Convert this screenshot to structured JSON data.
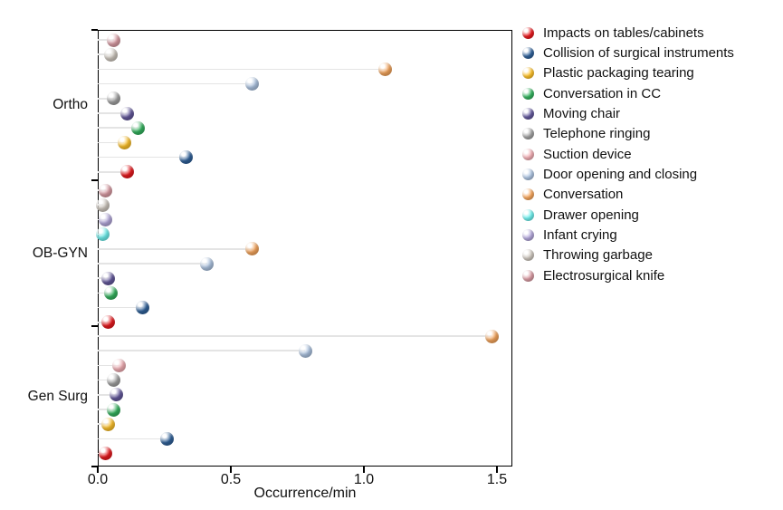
{
  "chart_data": {
    "type": "scatter",
    "variant": "grouped-lollipop-dot-plot",
    "title": "",
    "xlabel": "Occurrence/min",
    "ylabel": "",
    "xlim": [
      0,
      1.56
    ],
    "x_ticks": [
      "0.0",
      "0.5",
      "1.0",
      "1.5"
    ],
    "x_tick_values": [
      0,
      0.5,
      1.0,
      1.5
    ],
    "grid": false,
    "legend_position": "right-outside",
    "marker_style": "glossy-3d-sphere",
    "stem_color": "#e4e4e4",
    "categories": [
      {
        "name": "Impacts on tables/cabinets",
        "color": "#ea1a1f"
      },
      {
        "name": "Collision of surgical instruments",
        "color": "#31639c"
      },
      {
        "name": "Plastic packaging tearing",
        "color": "#ffc32b"
      },
      {
        "name": "Conversation in CC",
        "color": "#35b560"
      },
      {
        "name": "Moving chair",
        "color": "#655a9e"
      },
      {
        "name": "Telephone ringing",
        "color": "#a3a3a3"
      },
      {
        "name": "Suction device",
        "color": "#f4b0b6"
      },
      {
        "name": "Door opening and closing",
        "color": "#afc6e4"
      },
      {
        "name": "Conversation",
        "color": "#f9a85e"
      },
      {
        "name": "Drawer opening",
        "color": "#70f2f0"
      },
      {
        "name": "Infant crying",
        "color": "#b5a9dd"
      },
      {
        "name": "Throwing garbage",
        "color": "#d0c9c0"
      },
      {
        "name": "Electrosurgical knife",
        "color": "#dd9ea6"
      }
    ],
    "groups": [
      {
        "label": "Ortho",
        "points": [
          {
            "category": "Electrosurgical knife",
            "value": 0.06
          },
          {
            "category": "Throwing garbage",
            "value": 0.05
          },
          {
            "category": "Conversation",
            "value": 1.08
          },
          {
            "category": "Door opening and closing",
            "value": 0.58
          },
          {
            "category": "Telephone ringing",
            "value": 0.06
          },
          {
            "category": "Moving chair",
            "value": 0.11
          },
          {
            "category": "Conversation in CC",
            "value": 0.15
          },
          {
            "category": "Plastic packaging tearing",
            "value": 0.1
          },
          {
            "category": "Collision of surgical instruments",
            "value": 0.33
          },
          {
            "category": "Impacts on tables/cabinets",
            "value": 0.11
          }
        ]
      },
      {
        "label": "OB-GYN",
        "points": [
          {
            "category": "Electrosurgical knife",
            "value": 0.03
          },
          {
            "category": "Throwing garbage",
            "value": 0.02
          },
          {
            "category": "Infant crying",
            "value": 0.03
          },
          {
            "category": "Drawer opening",
            "value": 0.02
          },
          {
            "category": "Conversation",
            "value": 0.58
          },
          {
            "category": "Door opening and closing",
            "value": 0.41
          },
          {
            "category": "Moving chair",
            "value": 0.04
          },
          {
            "category": "Conversation in CC",
            "value": 0.05
          },
          {
            "category": "Collision of surgical instruments",
            "value": 0.17
          },
          {
            "category": "Impacts on tables/cabinets",
            "value": 0.04
          }
        ]
      },
      {
        "label": "Gen Surg",
        "points": [
          {
            "category": "Conversation",
            "value": 1.48
          },
          {
            "category": "Door opening and closing",
            "value": 0.78
          },
          {
            "category": "Suction device",
            "value": 0.08
          },
          {
            "category": "Telephone ringing",
            "value": 0.06
          },
          {
            "category": "Moving chair",
            "value": 0.07
          },
          {
            "category": "Conversation in CC",
            "value": 0.06
          },
          {
            "category": "Plastic packaging tearing",
            "value": 0.04
          },
          {
            "category": "Collision of surgical instruments",
            "value": 0.26
          },
          {
            "category": "Impacts on tables/cabinets",
            "value": 0.03
          }
        ]
      }
    ]
  }
}
